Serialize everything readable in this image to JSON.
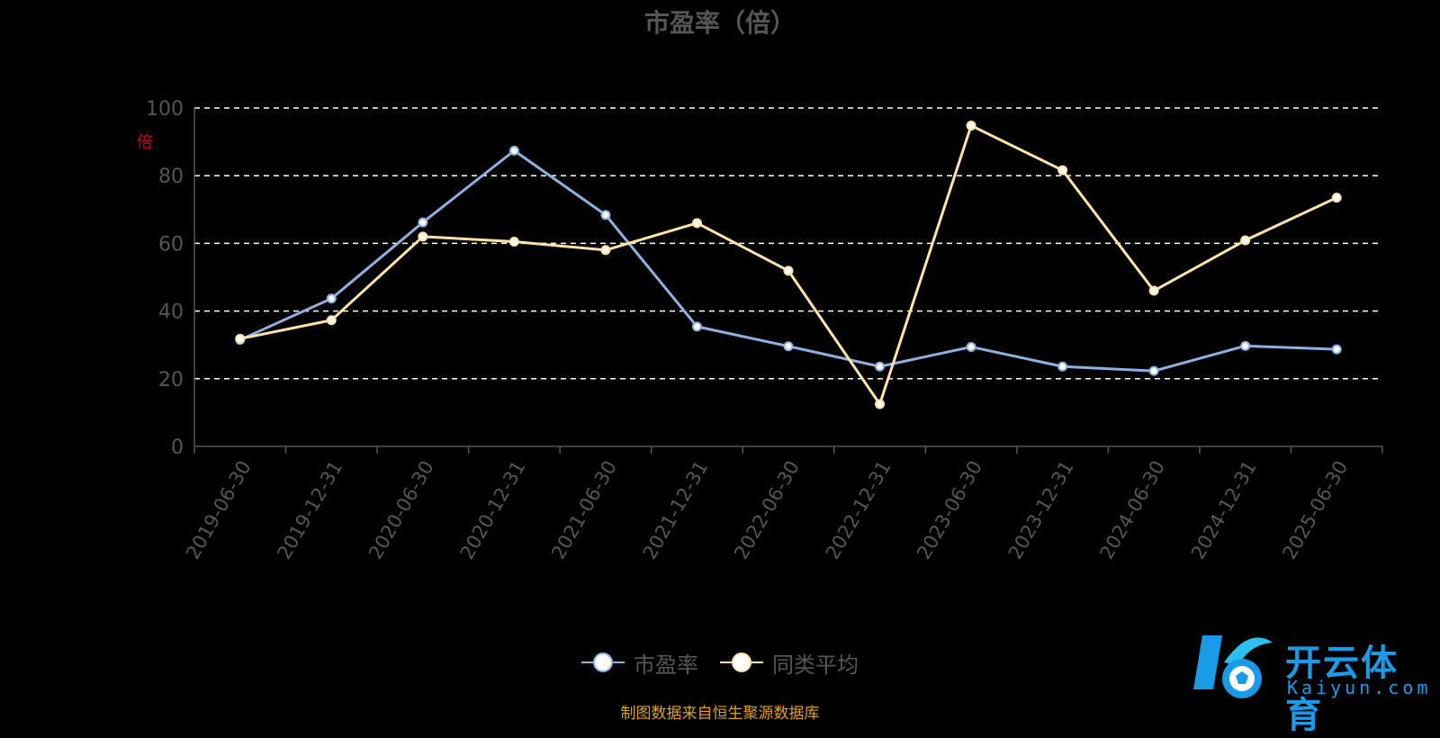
{
  "chart_data": {
    "type": "line",
    "title": "市盈率（倍）",
    "ylabel_tag": "倍",
    "ylim": [
      0,
      100
    ],
    "yticks": [
      0,
      20,
      40,
      60,
      80,
      100
    ],
    "grid": true,
    "legend_position": "bottom-center",
    "categories": [
      "2019-06-30",
      "2019-12-31",
      "2020-06-30",
      "2020-12-31",
      "2021-06-30",
      "2021-12-31",
      "2022-06-30",
      "2022-12-31",
      "2023-06-30",
      "2023-12-31",
      "2024-06-30",
      "2024-12-31",
      "2025-06-30"
    ],
    "series": [
      {
        "name": "市盈率",
        "color": "#8fb0e0",
        "values": [
          31.5,
          43.7,
          66.2,
          87.4,
          68.4,
          35.4,
          29.6,
          23.6,
          29.4,
          23.6,
          22.3,
          29.7,
          28.7
        ]
      },
      {
        "name": "同类平均",
        "color": "#fde3a7",
        "values": [
          31.8,
          37.3,
          62.0,
          60.5,
          58.0,
          66.0,
          51.9,
          12.5,
          94.8,
          81.6,
          46.0,
          60.9,
          73.5
        ]
      }
    ]
  },
  "legend": {
    "item1": "市盈率",
    "item2": "同类平均"
  },
  "source_note": "制图数据来自恒生聚源数据库",
  "watermark": {
    "cn": "开云体育",
    "en": "Kaiyun.com"
  }
}
